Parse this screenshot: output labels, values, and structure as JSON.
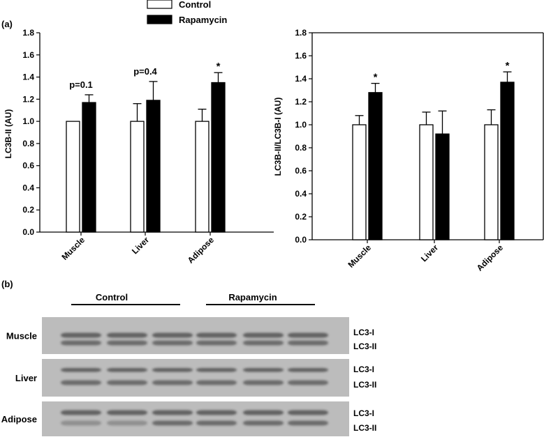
{
  "legend": {
    "control": "Control",
    "rapamycin": "Rapamycin",
    "colors": {
      "control": "#ffffff",
      "rapamycin": "#000000"
    }
  },
  "panel_a_label": "(a)",
  "panel_b_label": "(b)",
  "chart_data": [
    {
      "type": "bar",
      "categories": [
        "Muscle",
        "Liver",
        "Adipose"
      ],
      "ylabel": "LC3B-II (AU)",
      "xlabel": "",
      "ylim": [
        0,
        1.8
      ],
      "yticks": [
        "0.0",
        "0.2",
        "0.4",
        "0.6",
        "0.8",
        "1.0",
        "1.2",
        "1.4",
        "1.6",
        "1.8"
      ],
      "series": [
        {
          "name": "Control",
          "values": [
            1.0,
            1.0,
            1.0
          ],
          "errors": [
            0,
            0.16,
            0.11
          ]
        },
        {
          "name": "Rapamycin",
          "values": [
            1.17,
            1.19,
            1.35
          ],
          "errors": [
            0.07,
            0.17,
            0.09
          ]
        }
      ],
      "annotations": [
        "p=0.1",
        "p=0.4",
        "*"
      ]
    },
    {
      "type": "bar",
      "categories": [
        "Muscle",
        "Liver",
        "Adipose"
      ],
      "ylabel": "LC3B-II/LC3B-I (AU)",
      "xlabel": "",
      "ylim": [
        0,
        1.8
      ],
      "yticks": [
        "0.0",
        "0.2",
        "0.4",
        "0.6",
        "0.8",
        "1.0",
        "1.2",
        "1.4",
        "1.6",
        "1.8"
      ],
      "series": [
        {
          "name": "Control",
          "values": [
            1.0,
            1.0,
            1.0
          ],
          "errors": [
            0.08,
            0.11,
            0.13
          ]
        },
        {
          "name": "Rapamycin",
          "values": [
            1.28,
            0.92,
            1.37
          ],
          "errors": [
            0.08,
            0.2,
            0.09
          ]
        }
      ],
      "annotations": [
        "*",
        "",
        "*"
      ]
    }
  ],
  "blot": {
    "groups": [
      "Control",
      "Rapamycin"
    ],
    "rows": [
      {
        "tissue": "Muscle",
        "band_labels": [
          "LC3-I",
          "LC3-II"
        ]
      },
      {
        "tissue": "Liver",
        "band_labels": [
          "LC3-I",
          "LC3-II"
        ]
      },
      {
        "tissue": "Adipose",
        "band_labels": [
          "LC3-I",
          "LC3-II"
        ]
      }
    ]
  }
}
